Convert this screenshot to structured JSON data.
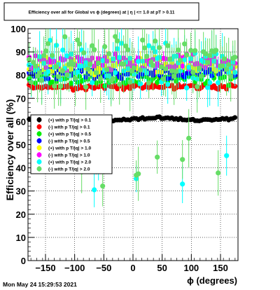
{
  "chart_data": {
    "type": "scatter",
    "title": "Efficiency over all for Global vs ϕ (degrees) at | η | <= 1.0 at pT > 0.11",
    "xlabel": "ϕ (degrees)",
    "ylabel": "Efficiency over all (%)",
    "xlim": [
      -180,
      180
    ],
    "ylim": [
      0,
      100
    ],
    "xticks": [
      "−150",
      "−100",
      "−50",
      "0",
      "50",
      "100",
      "150"
    ],
    "yticks": [
      "0",
      "10",
      "20",
      "30",
      "40",
      "50",
      "60",
      "70",
      "80",
      "90",
      "100"
    ],
    "grid": true,
    "legend_position": "left-middle",
    "timestamp": "Mon May 24 15:29:53 2021",
    "series": [
      {
        "name": "(+) with p T/|q| > 0.1",
        "color": "#000000",
        "mean": 61,
        "spread": 0.8,
        "err": 0.6
      },
      {
        "name": "(-) with p T/|q| > 0.1",
        "color": "#ff0000",
        "mean": 75,
        "spread": 1.0,
        "err": 0.8
      },
      {
        "name": "(+) with p T/|q| > 0.5",
        "color": "#00ee00",
        "mean": 79,
        "spread": 2.5,
        "err": 1.5
      },
      {
        "name": "(-) with p T/|q| > 0.5",
        "color": "#0000ff",
        "mean": 81,
        "spread": 2.0,
        "err": 1.5
      },
      {
        "name": "(+) with p T/|q| > 1.0",
        "color": "#ffff00",
        "mean": 84,
        "spread": 3.0,
        "err": 3.0
      },
      {
        "name": "(-) with p T/|q| > 1.0",
        "color": "#ff00ff",
        "mean": 85,
        "spread": 3.0,
        "err": 3.0
      },
      {
        "name": "(+) with p T/|q| > 2.0",
        "color": "#00ffff",
        "mean": 84,
        "spread": 8.0,
        "err": 8.0
      },
      {
        "name": "(-) with p T/|q| > 2.0",
        "color": "#66dd66",
        "mean": 85,
        "spread": 9.0,
        "err": 9.0
      }
    ]
  }
}
